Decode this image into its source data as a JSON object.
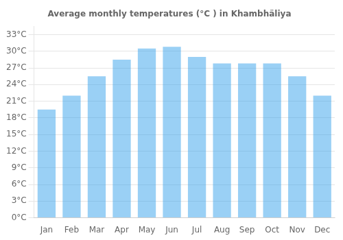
{
  "chart_data": {
    "type": "bar",
    "title": "Average monthly temperatures (°C ) in Khambhäliya",
    "categories": [
      "Jan",
      "Feb",
      "Mar",
      "Apr",
      "May",
      "Jun",
      "Jul",
      "Aug",
      "Sep",
      "Oct",
      "Nov",
      "Dec"
    ],
    "values": [
      19.5,
      22.0,
      25.5,
      28.5,
      30.5,
      30.8,
      29.0,
      27.8,
      27.8,
      27.8,
      25.5,
      22.0
    ],
    "ylim": [
      0,
      34.5
    ],
    "yticks": [
      {
        "value": 0,
        "label": "0°C"
      },
      {
        "value": 3,
        "label": "3°C"
      },
      {
        "value": 6,
        "label": "6°C"
      },
      {
        "value": 9,
        "label": "9°C"
      },
      {
        "value": 12,
        "label": "12°C"
      },
      {
        "value": 15,
        "label": "15°C"
      },
      {
        "value": 18,
        "label": "18°C"
      },
      {
        "value": 21,
        "label": "21°C"
      },
      {
        "value": 24,
        "label": "24°C"
      },
      {
        "value": 27,
        "label": "27°C"
      },
      {
        "value": 30,
        "label": "30°C"
      },
      {
        "value": 33,
        "label": "33°C"
      }
    ],
    "grid": true
  }
}
